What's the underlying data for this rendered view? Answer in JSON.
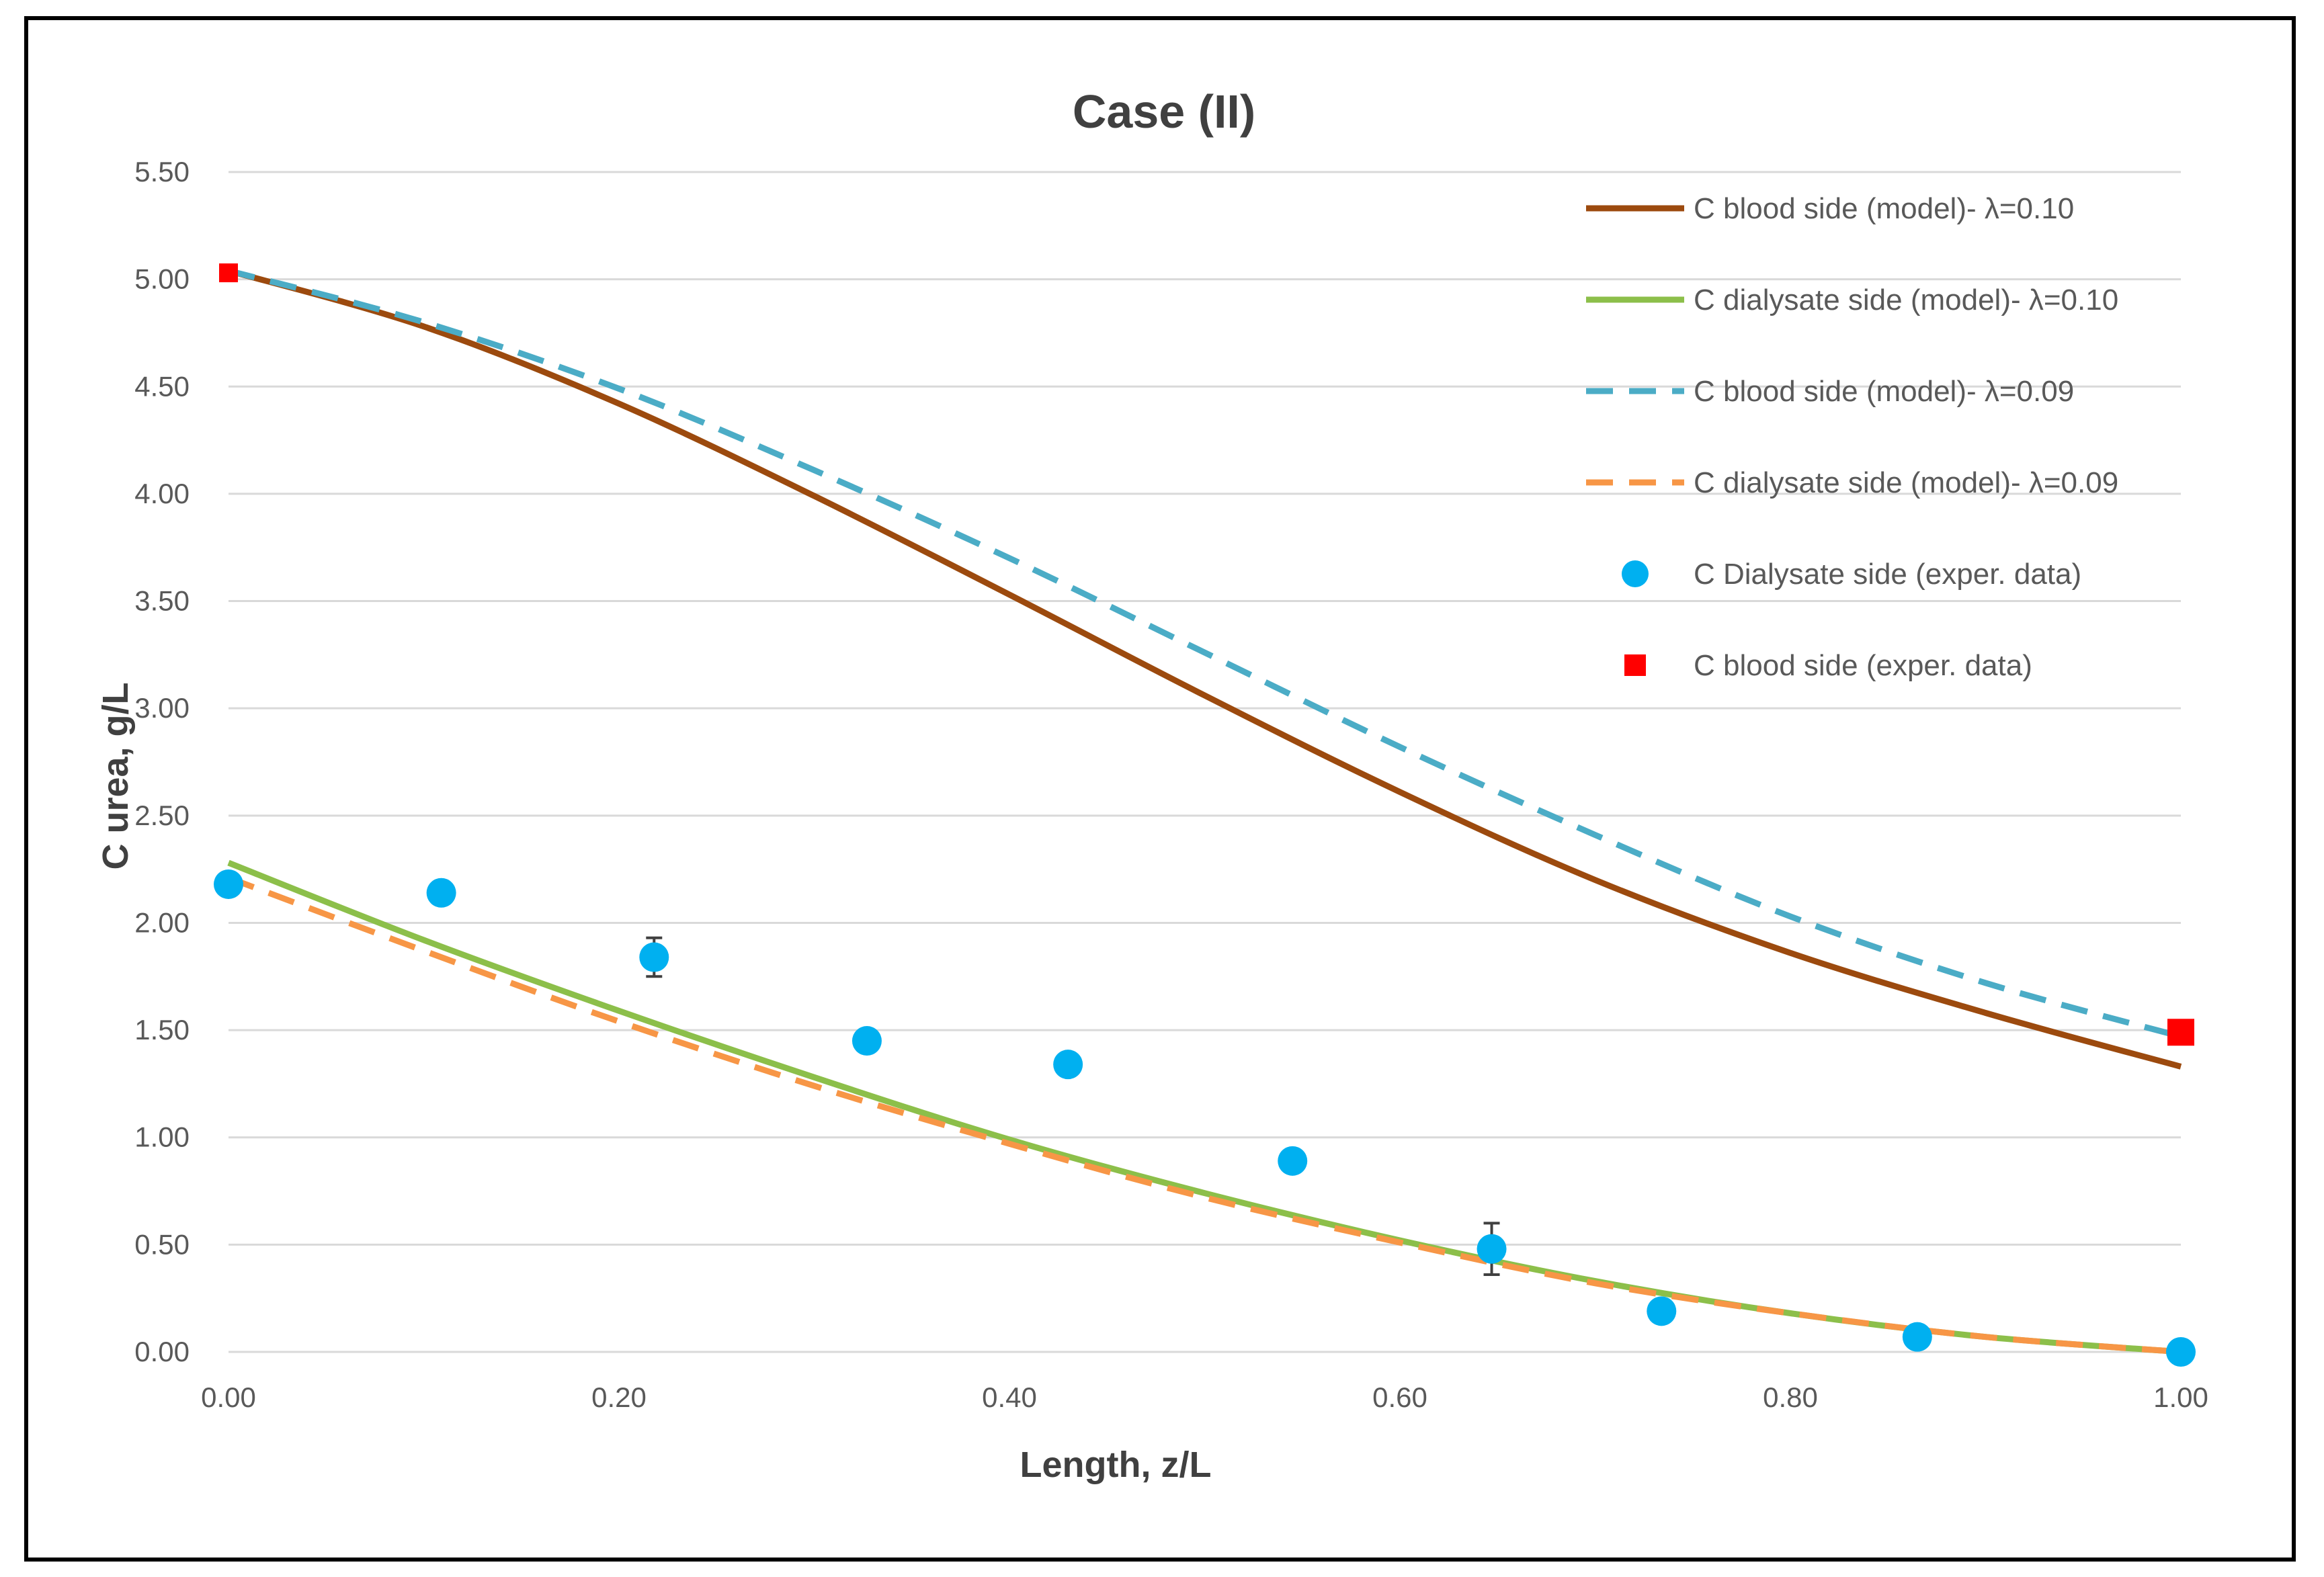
{
  "chart_data": {
    "type": "line",
    "title": "Case (II)",
    "xlabel": "Length, z/L",
    "ylabel": "C urea, g/L",
    "xlim": [
      0,
      1
    ],
    "ylim": [
      0,
      5.5
    ],
    "x_ticks": [
      "0.00",
      "0.20",
      "0.40",
      "0.60",
      "0.80",
      "1.00"
    ],
    "y_ticks": [
      "0.00",
      "0.50",
      "1.00",
      "1.50",
      "2.00",
      "2.50",
      "3.00",
      "3.50",
      "4.00",
      "4.50",
      "5.00",
      "5.50"
    ],
    "grid": true,
    "legend_position": "top-right",
    "series": [
      {
        "name": "C blood side (model)- λ=0.10",
        "style": "solid",
        "color": "#9c4a0e",
        "x": [
          0,
          0.1,
          0.2,
          0.3,
          0.4,
          0.5,
          0.6,
          0.7,
          0.8,
          0.9,
          1.0
        ],
        "y": [
          5.04,
          4.78,
          4.42,
          3.99,
          3.53,
          3.06,
          2.61,
          2.2,
          1.86,
          1.58,
          1.33
        ]
      },
      {
        "name": "C dialysate side (model)- λ=0.10",
        "style": "solid",
        "color": "#8cbf4a",
        "x": [
          0,
          0.1,
          0.2,
          0.3,
          0.4,
          0.5,
          0.6,
          0.7,
          0.8,
          0.9,
          1.0
        ],
        "y": [
          2.28,
          1.92,
          1.59,
          1.28,
          0.99,
          0.74,
          0.52,
          0.33,
          0.18,
          0.07,
          0.0
        ]
      },
      {
        "name": "C blood side (model)- λ=0.09",
        "style": "dashed",
        "color": "#4bacc6",
        "x": [
          0,
          0.1,
          0.2,
          0.3,
          0.4,
          0.5,
          0.6,
          0.7,
          0.8,
          0.9,
          1.0
        ],
        "y": [
          5.04,
          4.8,
          4.49,
          4.11,
          3.7,
          3.26,
          2.82,
          2.41,
          2.03,
          1.72,
          1.47
        ]
      },
      {
        "name": "C dialysate side (model)- λ=0.09",
        "style": "dashed",
        "color": "#f79646",
        "x": [
          0,
          0.1,
          0.2,
          0.3,
          0.4,
          0.5,
          0.6,
          0.7,
          0.8,
          0.9,
          1.0
        ],
        "y": [
          2.21,
          1.87,
          1.54,
          1.24,
          0.97,
          0.72,
          0.51,
          0.32,
          0.18,
          0.07,
          0.0
        ]
      },
      {
        "name": "C Dialysate side (exper. data)",
        "style": "circle",
        "color": "#00b0f0",
        "x": [
          0.0,
          0.109,
          0.218,
          0.327,
          0.43,
          0.545,
          0.647,
          0.734,
          0.865,
          1.0
        ],
        "y": [
          2.18,
          2.14,
          1.84,
          1.45,
          1.34,
          0.89,
          0.48,
          0.19,
          0.07,
          0.0
        ],
        "error": [
          0,
          0,
          0.09,
          0,
          0,
          0.05,
          0.12,
          0,
          0,
          0
        ]
      },
      {
        "name": "C blood side (exper. data)",
        "style": "square",
        "color": "#ff0000",
        "x": [
          0.0,
          1.0
        ],
        "y": [
          5.03,
          1.49
        ]
      }
    ]
  }
}
